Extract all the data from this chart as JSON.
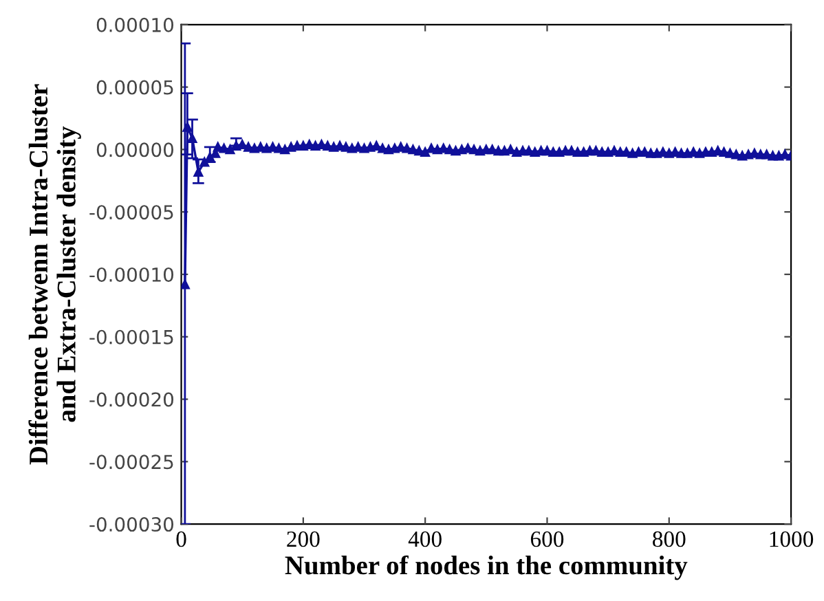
{
  "chart_data": {
    "type": "line",
    "xlabel": "Number of nodes in the community",
    "ylabel": "Difference betwenn Intra-Cluster\nand Extra-Cluster density",
    "x": [
      6,
      10,
      18,
      28,
      38,
      47,
      56,
      60,
      70,
      80,
      90,
      100,
      110,
      120,
      130,
      140,
      150,
      160,
      170,
      180,
      190,
      200,
      210,
      220,
      230,
      240,
      250,
      260,
      270,
      280,
      290,
      300,
      310,
      320,
      330,
      340,
      350,
      360,
      370,
      380,
      390,
      400,
      410,
      420,
      430,
      440,
      450,
      460,
      470,
      480,
      490,
      500,
      510,
      520,
      530,
      540,
      550,
      560,
      570,
      580,
      590,
      600,
      610,
      620,
      630,
      640,
      650,
      660,
      670,
      680,
      690,
      700,
      710,
      720,
      730,
      740,
      750,
      760,
      770,
      780,
      790,
      800,
      810,
      820,
      830,
      840,
      850,
      860,
      870,
      880,
      890,
      900,
      910,
      920,
      930,
      940,
      950,
      960,
      970,
      980,
      990,
      1000
    ],
    "series": [
      {
        "color": "#10109a",
        "values": [
          -0.000108,
          1.8e-05,
          9e-06,
          -1.8e-05,
          -1e-05,
          -6e-06,
          -3e-06,
          2e-06,
          1e-06,
          0,
          3e-06,
          4e-06,
          2e-06,
          1e-06,
          2e-06,
          1e-06,
          2e-06,
          1e-06,
          0,
          2e-06,
          3e-06,
          3e-06,
          4e-06,
          3e-06,
          4e-06,
          3e-06,
          2e-06,
          3e-06,
          2e-06,
          1e-06,
          2e-06,
          1e-06,
          2e-06,
          3e-06,
          1e-06,
          0,
          1e-06,
          2e-06,
          1e-06,
          0,
          -1e-06,
          -2e-06,
          1e-06,
          0,
          1e-06,
          0,
          -1e-06,
          0,
          1e-06,
          0,
          -1e-06,
          0,
          0,
          -1e-06,
          -1e-06,
          0,
          -2e-06,
          -1e-06,
          -1e-06,
          -2e-06,
          -1e-06,
          -1e-06,
          -2e-06,
          -2e-06,
          -1e-06,
          -1e-06,
          -2e-06,
          -2e-06,
          -1e-06,
          -1e-06,
          -2e-06,
          -2e-06,
          -1e-06,
          -2e-06,
          -2e-06,
          -3e-06,
          -2e-06,
          -2e-06,
          -3e-06,
          -3e-06,
          -2e-06,
          -3e-06,
          -2e-06,
          -3e-06,
          -3e-06,
          -2e-06,
          -3e-06,
          -2e-06,
          -2e-06,
          -1e-06,
          -2e-06,
          -3e-06,
          -4e-06,
          -5e-06,
          -4e-06,
          -3e-06,
          -4e-06,
          -4e-06,
          -5e-06,
          -5e-06,
          -4e-06,
          -5e-06
        ],
        "errors": [
          [
            -0.0003,
            8.5e-05
          ],
          [
            -4e-06,
            4.5e-05
          ],
          [
            -7e-06,
            2.4e-05
          ],
          [
            -2.7e-05,
            -8e-06
          ],
          null,
          [
            -1e-05,
            2e-06
          ],
          null,
          null,
          null,
          null,
          [
            3e-06,
            9e-06
          ],
          null,
          null,
          null,
          null,
          null,
          null,
          null,
          null,
          null,
          null,
          null,
          null,
          null,
          null,
          null,
          null,
          null,
          null,
          null,
          null,
          null,
          null,
          null,
          null,
          null,
          null,
          null,
          null,
          null,
          null,
          null,
          null,
          null,
          null,
          null,
          null,
          null,
          null,
          null,
          null,
          null,
          null,
          null,
          null,
          null,
          null,
          null,
          null,
          null,
          null,
          null,
          null,
          null,
          null,
          null,
          null,
          null,
          null,
          null,
          null,
          null,
          null,
          null,
          null,
          null,
          null,
          null,
          null,
          null,
          null,
          null,
          null,
          null,
          null,
          null,
          null,
          null,
          null,
          null,
          null,
          null,
          null,
          null,
          null,
          null,
          null,
          null,
          null,
          null,
          null,
          null
        ]
      }
    ],
    "marker": "triangle",
    "line_style": "solid",
    "xlim": [
      0,
      1000
    ],
    "xticks": [
      0,
      200,
      400,
      600,
      800,
      1000
    ],
    "ylim": [
      -0.0003,
      0.0001
    ],
    "yticks": [
      {
        "value": -0.0003,
        "label": "-0.00030"
      },
      {
        "value": -0.00025,
        "label": "-0.00025"
      },
      {
        "value": -0.0002,
        "label": "-0.00020"
      },
      {
        "value": -0.00015,
        "label": "-0.00015"
      },
      {
        "value": -0.0001,
        "label": "-0.00010"
      },
      {
        "value": -5e-05,
        "label": "-0.00005"
      },
      {
        "value": 0,
        "label": "0.00000"
      },
      {
        "value": 5e-05,
        "label": "0.00005"
      },
      {
        "value": 0.0001,
        "label": "0.00010"
      }
    ],
    "grid": false
  }
}
